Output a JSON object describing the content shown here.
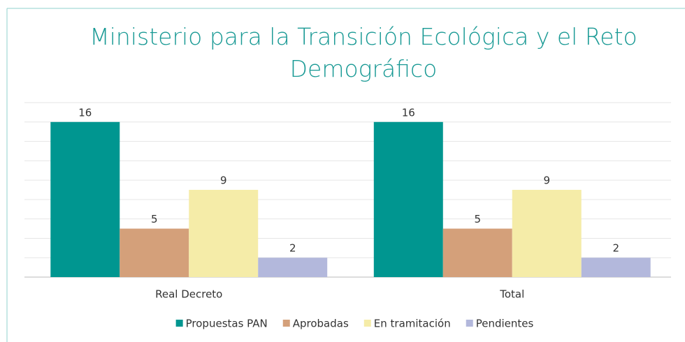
{
  "chart_data": {
    "type": "bar",
    "title": "Ministerio para la Transición Ecológica y el Reto Demográfico",
    "categories": [
      "Real Decreto",
      "Total"
    ],
    "series": [
      {
        "name": "Propuestas PAN",
        "color": "#009690",
        "values": [
          16,
          16
        ]
      },
      {
        "name": "Aprobadas",
        "color": "#d4a07a",
        "values": [
          5,
          5
        ]
      },
      {
        "name": "En tramitación",
        "color": "#f5eca8",
        "values": [
          9,
          9
        ]
      },
      {
        "name": "Pendientes",
        "color": "#b3b8dc",
        "values": [
          2,
          2
        ]
      }
    ],
    "ylim": [
      0,
      18
    ],
    "yticks": [
      0,
      2,
      4,
      6,
      8,
      10,
      12,
      14,
      16,
      18
    ],
    "grid": true,
    "legend": "bottom"
  }
}
